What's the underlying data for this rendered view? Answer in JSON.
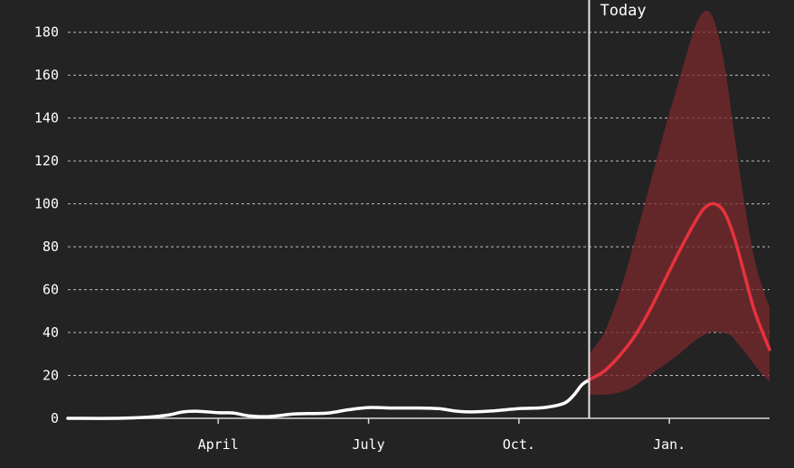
{
  "chart_data": {
    "type": "line",
    "title": "",
    "xlabel": "",
    "ylabel": "",
    "ylim": [
      0,
      190
    ],
    "grid": true,
    "y_ticks": [
      0,
      20,
      40,
      60,
      80,
      100,
      120,
      140,
      160,
      180
    ],
    "x_ticks": [
      {
        "label": "April",
        "month": 3
      },
      {
        "label": "July",
        "month": 6
      },
      {
        "label": "Oct.",
        "month": 9
      },
      {
        "label": "Jan.",
        "month": 12
      }
    ],
    "x_range_months": [
      0.0,
      14.0
    ],
    "today": {
      "label": "Today",
      "month": 10.4
    },
    "series": [
      {
        "role": "observed",
        "color": "#ffffff",
        "points": [
          [
            0.0,
            0
          ],
          [
            1.0,
            0
          ],
          [
            1.6,
            0.5
          ],
          [
            2.0,
            1.5
          ],
          [
            2.3,
            3
          ],
          [
            2.6,
            3.3
          ],
          [
            3.0,
            2.6
          ],
          [
            3.3,
            2.5
          ],
          [
            3.6,
            1.2
          ],
          [
            4.0,
            0.8
          ],
          [
            4.5,
            2
          ],
          [
            4.8,
            2.2
          ],
          [
            5.2,
            2.5
          ],
          [
            5.6,
            4
          ],
          [
            6.0,
            5
          ],
          [
            6.5,
            4.8
          ],
          [
            7.0,
            4.8
          ],
          [
            7.4,
            4.5
          ],
          [
            7.7,
            3.5
          ],
          [
            8.0,
            3
          ],
          [
            8.5,
            3.5
          ],
          [
            9.0,
            4.5
          ],
          [
            9.5,
            5
          ],
          [
            9.9,
            7
          ],
          [
            10.1,
            11
          ],
          [
            10.25,
            15.5
          ],
          [
            10.4,
            18
          ]
        ]
      },
      {
        "role": "forecast",
        "color": "#e8323d",
        "points": [
          [
            10.4,
            18
          ],
          [
            10.7,
            22
          ],
          [
            11.0,
            29
          ],
          [
            11.3,
            38
          ],
          [
            11.6,
            50
          ],
          [
            11.9,
            64
          ],
          [
            12.2,
            78
          ],
          [
            12.5,
            91
          ],
          [
            12.7,
            98
          ],
          [
            12.9,
            100
          ],
          [
            13.1,
            96
          ],
          [
            13.3,
            84
          ],
          [
            13.5,
            67
          ],
          [
            13.7,
            50
          ],
          [
            14.0,
            32
          ]
        ]
      }
    ],
    "band": {
      "color": "#7a2a2e",
      "upper": [
        [
          10.4,
          30
        ],
        [
          10.7,
          40
        ],
        [
          11.0,
          58
        ],
        [
          11.3,
          82
        ],
        [
          11.6,
          108
        ],
        [
          11.9,
          134
        ],
        [
          12.2,
          158
        ],
        [
          12.45,
          178
        ],
        [
          12.6,
          187
        ],
        [
          12.75,
          190
        ],
        [
          12.9,
          185
        ],
        [
          13.1,
          165
        ],
        [
          13.3,
          132
        ],
        [
          13.5,
          100
        ],
        [
          13.7,
          74
        ],
        [
          13.9,
          58
        ],
        [
          14.0,
          52
        ]
      ],
      "lower": [
        [
          10.4,
          11
        ],
        [
          10.7,
          11
        ],
        [
          11.0,
          12
        ],
        [
          11.3,
          15
        ],
        [
          11.6,
          20
        ],
        [
          11.9,
          25
        ],
        [
          12.2,
          30
        ],
        [
          12.5,
          36
        ],
        [
          12.8,
          40
        ],
        [
          13.0,
          40
        ],
        [
          13.2,
          39
        ],
        [
          13.4,
          34
        ],
        [
          13.6,
          28
        ],
        [
          13.8,
          22
        ],
        [
          14.0,
          17
        ]
      ]
    }
  }
}
